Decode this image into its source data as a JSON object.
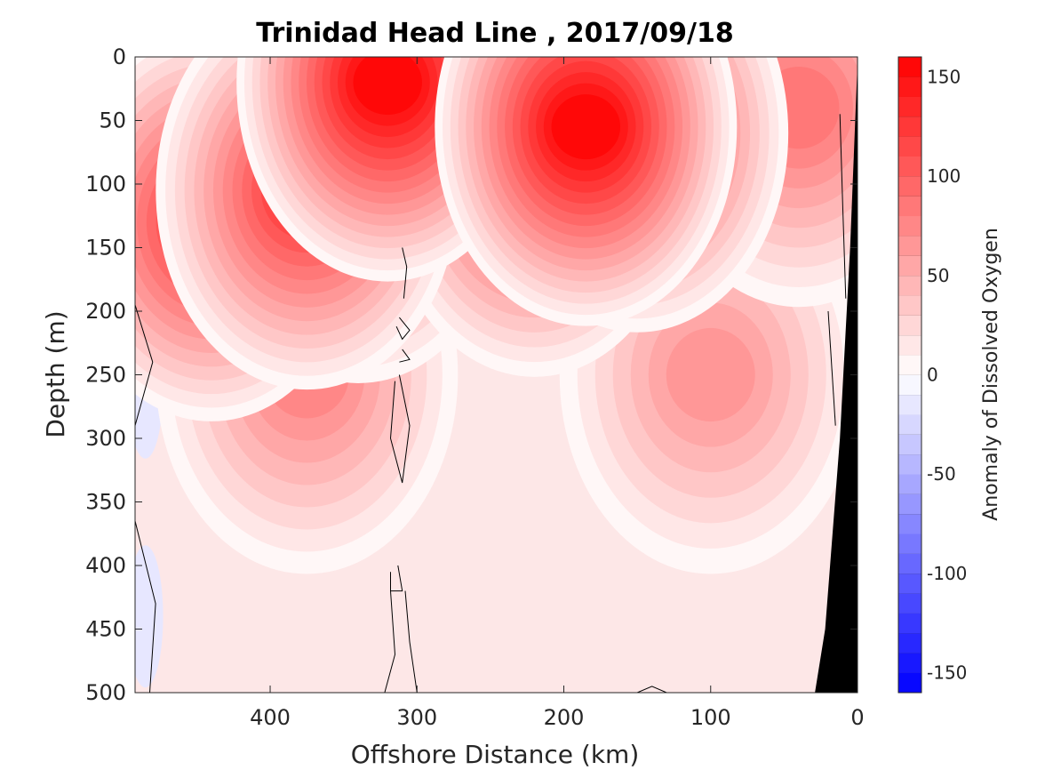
{
  "chart_data": {
    "type": "heatmap",
    "title": "Trinidad Head Line , 2017/09/18",
    "xlabel": "Offshore Distance (km)",
    "ylabel": "Depth (m)",
    "colorbar_label": "Anomaly of Dissolved Oxygen",
    "xlim": [
      492,
      0
    ],
    "ylim": [
      0,
      500
    ],
    "x_reversed": true,
    "y_reversed": true,
    "x_ticks": [
      400,
      300,
      200,
      100,
      0
    ],
    "y_ticks": [
      0,
      50,
      100,
      150,
      200,
      250,
      300,
      350,
      400,
      450,
      500
    ],
    "colorbar": {
      "range": [
        -160,
        160
      ],
      "step": 10,
      "ticks": [
        150,
        100,
        50,
        0,
        -50,
        -100,
        -150
      ],
      "colormap": "blue-white-red",
      "low_color": "#0000ff",
      "mid_color": "#ffffff",
      "high_color": "#ff0000"
    },
    "bathymetry_color": "#000000",
    "zero_contour_color": "#000000",
    "features": [
      {
        "x": 320,
        "y": 20,
        "value": 160
      },
      {
        "x": 185,
        "y": 55,
        "value": 160
      },
      {
        "x": 150,
        "y": 60,
        "value": 130
      },
      {
        "x": 440,
        "y": 130,
        "value": 125
      },
      {
        "x": 375,
        "y": 105,
        "value": 130
      },
      {
        "x": 340,
        "y": 100,
        "value": 110
      },
      {
        "x": 220,
        "y": 95,
        "value": 120
      },
      {
        "x": 40,
        "y": 40,
        "value": 90
      },
      {
        "x": 375,
        "y": 250,
        "value": 80
      },
      {
        "x": 100,
        "y": 250,
        "value": 65
      },
      {
        "x": 310,
        "y": 230,
        "value": -3
      },
      {
        "x": 485,
        "y": 260,
        "value": -10
      },
      {
        "x": 485,
        "y": 440,
        "value": -10
      }
    ]
  }
}
